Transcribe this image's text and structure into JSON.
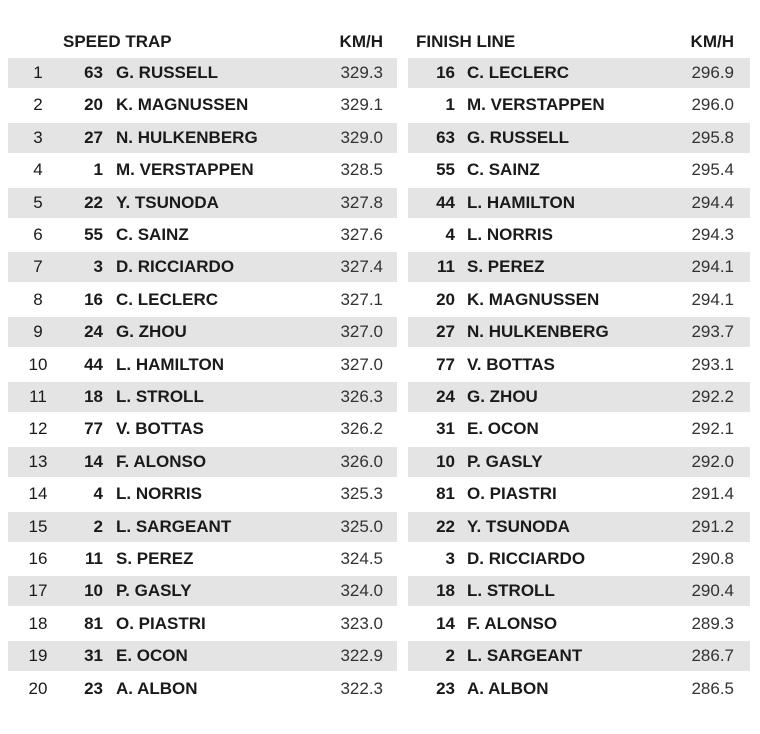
{
  "speed_trap": {
    "header": {
      "title": "SPEED TRAP",
      "unit": "KM/H"
    },
    "rows": [
      [
        1,
        63,
        "G. RUSSELL",
        "329.3"
      ],
      [
        2,
        20,
        "K. MAGNUSSEN",
        "329.1"
      ],
      [
        3,
        27,
        "N. HULKENBERG",
        "329.0"
      ],
      [
        4,
        1,
        "M. VERSTAPPEN",
        "328.5"
      ],
      [
        5,
        22,
        "Y. TSUNODA",
        "327.8"
      ],
      [
        6,
        55,
        "C. SAINZ",
        "327.6"
      ],
      [
        7,
        3,
        "D. RICCIARDO",
        "327.4"
      ],
      [
        8,
        16,
        "C. LECLERC",
        "327.1"
      ],
      [
        9,
        24,
        "G. ZHOU",
        "327.0"
      ],
      [
        10,
        44,
        "L. HAMILTON",
        "327.0"
      ],
      [
        11,
        18,
        "L. STROLL",
        "326.3"
      ],
      [
        12,
        77,
        "V. BOTTAS",
        "326.2"
      ],
      [
        13,
        14,
        "F. ALONSO",
        "326.0"
      ],
      [
        14,
        4,
        "L. NORRIS",
        "325.3"
      ],
      [
        15,
        2,
        "L. SARGEANT",
        "325.0"
      ],
      [
        16,
        11,
        "S. PEREZ",
        "324.5"
      ],
      [
        17,
        10,
        "P. GASLY",
        "324.0"
      ],
      [
        18,
        81,
        "O. PIASTRI",
        "323.0"
      ],
      [
        19,
        31,
        "E. OCON",
        "322.9"
      ],
      [
        20,
        23,
        "A. ALBON",
        "322.3"
      ]
    ]
  },
  "finish_line": {
    "header": {
      "title": "FINISH LINE",
      "unit": "KM/H"
    },
    "rows": [
      [
        16,
        "C. LECLERC",
        "296.9"
      ],
      [
        1,
        "M. VERSTAPPEN",
        "296.0"
      ],
      [
        63,
        "G. RUSSELL",
        "295.8"
      ],
      [
        55,
        "C. SAINZ",
        "295.4"
      ],
      [
        44,
        "L. HAMILTON",
        "294.4"
      ],
      [
        4,
        "L. NORRIS",
        "294.3"
      ],
      [
        11,
        "S. PEREZ",
        "294.1"
      ],
      [
        20,
        "K. MAGNUSSEN",
        "294.1"
      ],
      [
        27,
        "N. HULKENBERG",
        "293.7"
      ],
      [
        77,
        "V. BOTTAS",
        "293.1"
      ],
      [
        24,
        "G. ZHOU",
        "292.2"
      ],
      [
        31,
        "E. OCON",
        "292.1"
      ],
      [
        10,
        "P. GASLY",
        "292.0"
      ],
      [
        81,
        "O. PIASTRI",
        "291.4"
      ],
      [
        22,
        "Y. TSUNODA",
        "291.2"
      ],
      [
        3,
        "D. RICCIARDO",
        "290.8"
      ],
      [
        18,
        "L. STROLL",
        "290.4"
      ],
      [
        14,
        "F. ALONSO",
        "289.3"
      ],
      [
        2,
        "L. SARGEANT",
        "286.7"
      ],
      [
        23,
        "A. ALBON",
        "286.5"
      ]
    ]
  }
}
